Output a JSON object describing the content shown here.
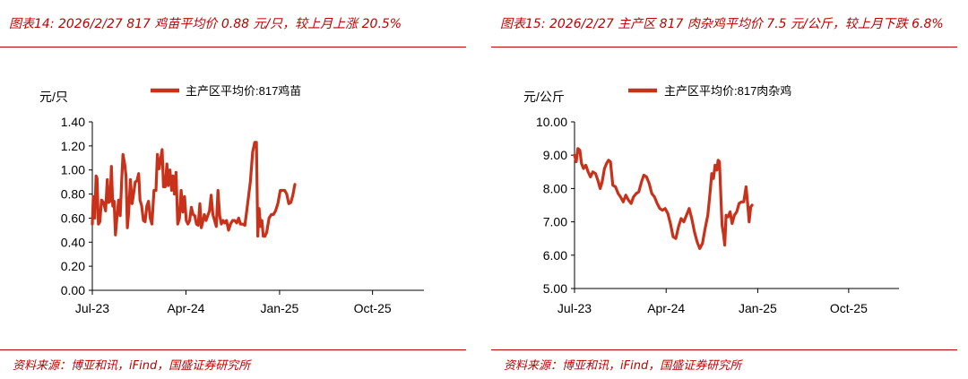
{
  "panels": [
    {
      "title": "图表14:  2026/2/27 817 鸡苗平均价 0.88 元/只，较上月上涨 20.5%",
      "source": "资料来源：博亚和讯，iFind，国盛证券研究所"
    },
    {
      "title": "图表15:  2026/2/27 主产区 817 肉杂鸡平均价 7.5 元/公斤，较上月下跌 6.8%",
      "source": "资料来源：博亚和讯，iFind，国盛证券研究所"
    }
  ],
  "colors": {
    "accent": "#c00000",
    "series": "#c8321a",
    "axis": "#000000"
  },
  "chart_data": [
    {
      "type": "line",
      "title": "",
      "unit_label": "元/只",
      "legend": "top",
      "grid": false,
      "ylim": [
        0.0,
        1.4
      ],
      "yticks": [
        "0.00",
        "0.20",
        "0.40",
        "0.60",
        "0.80",
        "1.00",
        "1.20",
        "1.40"
      ],
      "xlim": [
        "2023-07",
        "2026-03"
      ],
      "xticks": [
        {
          "label": "Jul-23",
          "date": "2023-07"
        },
        {
          "label": "Apr-24",
          "date": "2024-04"
        },
        {
          "label": "Jan-25",
          "date": "2025-01"
        },
        {
          "label": "Oct-25",
          "date": "2025-10"
        }
      ],
      "series": [
        {
          "name": "主产区平均价:817鸡苗",
          "points": [
            [
              "2023-07-01",
              0.55
            ],
            [
              "2023-07-04",
              0.78
            ],
            [
              "2023-07-08",
              0.6
            ],
            [
              "2023-07-12",
              0.95
            ],
            [
              "2023-07-15",
              0.93
            ],
            [
              "2023-07-19",
              0.55
            ],
            [
              "2023-07-23",
              0.57
            ],
            [
              "2023-07-28",
              0.75
            ],
            [
              "2023-08-03",
              0.73
            ],
            [
              "2023-08-09",
              0.66
            ],
            [
              "2023-08-14",
              0.92
            ],
            [
              "2023-08-18",
              0.73
            ],
            [
              "2023-08-22",
              0.74
            ],
            [
              "2023-08-26",
              1.03
            ],
            [
              "2023-08-30",
              0.7
            ],
            [
              "2023-09-03",
              0.74
            ],
            [
              "2023-09-07",
              0.46
            ],
            [
              "2023-09-11",
              0.6
            ],
            [
              "2023-09-16",
              0.75
            ],
            [
              "2023-09-21",
              0.62
            ],
            [
              "2023-09-25",
              0.9
            ],
            [
              "2023-09-29",
              1.13
            ],
            [
              "2023-10-04",
              1.05
            ],
            [
              "2023-10-08",
              0.95
            ],
            [
              "2023-10-12",
              0.52
            ],
            [
              "2023-10-16",
              0.65
            ],
            [
              "2023-10-21",
              0.92
            ],
            [
              "2023-10-26",
              0.72
            ],
            [
              "2023-10-30",
              0.8
            ],
            [
              "2023-11-04",
              0.9
            ],
            [
              "2023-11-09",
              0.91
            ],
            [
              "2023-11-14",
              0.97
            ],
            [
              "2023-11-18",
              0.75
            ],
            [
              "2023-11-23",
              0.7
            ],
            [
              "2023-11-28",
              0.58
            ],
            [
              "2023-12-03",
              0.57
            ],
            [
              "2023-12-08",
              0.7
            ],
            [
              "2023-12-13",
              0.74
            ],
            [
              "2023-12-18",
              0.6
            ],
            [
              "2023-12-23",
              0.55
            ],
            [
              "2023-12-29",
              0.83
            ],
            [
              "2024-01-04",
              0.83
            ],
            [
              "2024-01-08",
              1.13
            ],
            [
              "2024-01-13",
              1.01
            ],
            [
              "2024-01-18",
              1.1
            ],
            [
              "2024-01-22",
              1.17
            ],
            [
              "2024-01-26",
              0.86
            ],
            [
              "2024-01-31",
              0.86
            ],
            [
              "2024-02-05",
              1.05
            ],
            [
              "2024-02-09",
              0.87
            ],
            [
              "2024-02-14",
              1.0
            ],
            [
              "2024-02-19",
              0.83
            ],
            [
              "2024-02-23",
              0.95
            ],
            [
              "2024-02-27",
              0.8
            ],
            [
              "2024-03-03",
              0.98
            ],
            [
              "2024-03-08",
              0.55
            ],
            [
              "2024-03-13",
              0.6
            ],
            [
              "2024-03-18",
              0.83
            ],
            [
              "2024-03-23",
              0.65
            ],
            [
              "2024-03-28",
              0.78
            ],
            [
              "2024-04-02",
              0.58
            ],
            [
              "2024-04-07",
              0.55
            ],
            [
              "2024-04-12",
              0.58
            ],
            [
              "2024-04-17",
              0.69
            ],
            [
              "2024-04-22",
              0.63
            ],
            [
              "2024-04-27",
              0.62
            ],
            [
              "2024-05-02",
              0.55
            ],
            [
              "2024-05-07",
              0.54
            ],
            [
              "2024-05-12",
              0.72
            ],
            [
              "2024-05-16",
              0.52
            ],
            [
              "2024-05-21",
              0.58
            ],
            [
              "2024-05-25",
              0.63
            ],
            [
              "2024-05-30",
              0.58
            ],
            [
              "2024-06-04",
              0.62
            ],
            [
              "2024-06-09",
              0.66
            ],
            [
              "2024-06-14",
              0.79
            ],
            [
              "2024-06-19",
              0.63
            ],
            [
              "2024-06-24",
              0.58
            ],
            [
              "2024-06-29",
              0.53
            ],
            [
              "2024-07-04",
              0.83
            ],
            [
              "2024-07-09",
              0.62
            ],
            [
              "2024-07-14",
              0.55
            ],
            [
              "2024-07-19",
              0.58
            ],
            [
              "2024-07-24",
              0.56
            ],
            [
              "2024-07-29",
              0.58
            ],
            [
              "2024-08-04",
              0.5
            ],
            [
              "2024-08-10",
              0.55
            ],
            [
              "2024-08-16",
              0.58
            ],
            [
              "2024-08-22",
              0.58
            ],
            [
              "2024-08-28",
              0.56
            ],
            [
              "2024-09-03",
              0.6
            ],
            [
              "2024-09-08",
              0.55
            ],
            [
              "2024-09-15",
              0.55
            ],
            [
              "2024-09-21",
              0.54
            ],
            [
              "2024-09-28",
              0.69
            ],
            [
              "2024-10-07",
              0.9
            ],
            [
              "2024-10-14",
              1.15
            ],
            [
              "2024-10-20",
              1.23
            ],
            [
              "2024-10-25",
              1.23
            ],
            [
              "2024-10-29",
              0.45
            ],
            [
              "2024-11-02",
              0.68
            ],
            [
              "2024-11-06",
              0.53
            ],
            [
              "2024-11-10",
              0.58
            ],
            [
              "2024-11-14",
              0.45
            ],
            [
              "2024-11-19",
              0.45
            ],
            [
              "2024-11-24",
              0.48
            ],
            [
              "2024-12-01",
              0.6
            ],
            [
              "2024-12-08",
              0.63
            ],
            [
              "2024-12-14",
              0.63
            ],
            [
              "2024-12-20",
              0.66
            ],
            [
              "2024-12-27",
              0.72
            ],
            [
              "2025-01-03",
              0.83
            ],
            [
              "2025-01-09",
              0.83
            ],
            [
              "2025-01-16",
              0.83
            ],
            [
              "2025-01-22",
              0.8
            ],
            [
              "2025-01-28",
              0.72
            ],
            [
              "2025-02-03",
              0.73
            ],
            [
              "2025-02-09",
              0.79
            ],
            [
              "2025-02-15",
              0.88
            ]
          ]
        }
      ]
    },
    {
      "type": "line",
      "title": "",
      "unit_label": "元/公斤",
      "legend": "top",
      "grid": false,
      "ylim": [
        5.0,
        10.0
      ],
      "yticks": [
        "5.00",
        "6.00",
        "7.00",
        "8.00",
        "9.00",
        "10.00"
      ],
      "xlim": [
        "2023-07",
        "2026-03"
      ],
      "xticks": [
        {
          "label": "Jul-23",
          "date": "2023-07"
        },
        {
          "label": "Apr-24",
          "date": "2024-04"
        },
        {
          "label": "Jan-25",
          "date": "2025-01"
        },
        {
          "label": "Oct-25",
          "date": "2025-10"
        }
      ],
      "series": [
        {
          "name": "主产区平均价:817肉杂鸡",
          "points": [
            [
              "2023-07-01",
              9.0
            ],
            [
              "2023-07-06",
              8.8
            ],
            [
              "2023-07-11",
              9.2
            ],
            [
              "2023-07-17",
              9.15
            ],
            [
              "2023-07-22",
              8.75
            ],
            [
              "2023-07-28",
              8.6
            ],
            [
              "2023-08-04",
              8.7
            ],
            [
              "2023-08-11",
              8.5
            ],
            [
              "2023-08-18",
              8.35
            ],
            [
              "2023-08-25",
              8.5
            ],
            [
              "2023-09-02",
              8.45
            ],
            [
              "2023-09-09",
              8.25
            ],
            [
              "2023-09-16",
              8.0
            ],
            [
              "2023-09-22",
              8.2
            ],
            [
              "2023-09-29",
              8.6
            ],
            [
              "2023-10-05",
              8.75
            ],
            [
              "2023-10-11",
              8.85
            ],
            [
              "2023-10-17",
              8.8
            ],
            [
              "2023-10-24",
              8.1
            ],
            [
              "2023-11-01",
              8.05
            ],
            [
              "2023-11-09",
              7.85
            ],
            [
              "2023-11-16",
              7.75
            ],
            [
              "2023-11-24",
              7.6
            ],
            [
              "2023-12-02",
              7.8
            ],
            [
              "2023-12-10",
              7.65
            ],
            [
              "2023-12-18",
              7.55
            ],
            [
              "2023-12-25",
              7.75
            ],
            [
              "2024-01-02",
              7.85
            ],
            [
              "2024-01-10",
              7.9
            ],
            [
              "2024-01-18",
              8.2
            ],
            [
              "2024-01-25",
              8.4
            ],
            [
              "2024-02-02",
              8.35
            ],
            [
              "2024-02-10",
              8.15
            ],
            [
              "2024-02-18",
              7.85
            ],
            [
              "2024-02-26",
              7.75
            ],
            [
              "2024-03-05",
              7.55
            ],
            [
              "2024-03-13",
              7.4
            ],
            [
              "2024-03-21",
              7.35
            ],
            [
              "2024-03-29",
              7.4
            ],
            [
              "2024-04-06",
              7.25
            ],
            [
              "2024-04-14",
              6.95
            ],
            [
              "2024-04-22",
              6.55
            ],
            [
              "2024-04-30",
              6.5
            ],
            [
              "2024-05-08",
              6.85
            ],
            [
              "2024-05-16",
              7.1
            ],
            [
              "2024-05-24",
              7.0
            ],
            [
              "2024-06-01",
              7.2
            ],
            [
              "2024-06-09",
              7.4
            ],
            [
              "2024-06-17",
              7.1
            ],
            [
              "2024-06-25",
              6.7
            ],
            [
              "2024-07-03",
              6.4
            ],
            [
              "2024-07-11",
              6.2
            ],
            [
              "2024-07-19",
              6.35
            ],
            [
              "2024-07-27",
              6.8
            ],
            [
              "2024-08-04",
              7.2
            ],
            [
              "2024-08-11",
              7.9
            ],
            [
              "2024-08-16",
              8.45
            ],
            [
              "2024-08-21",
              8.3
            ],
            [
              "2024-08-26",
              8.7
            ],
            [
              "2024-08-31",
              8.55
            ],
            [
              "2024-09-04",
              8.85
            ],
            [
              "2024-09-08",
              8.8
            ],
            [
              "2024-09-12",
              7.8
            ],
            [
              "2024-09-16",
              6.9
            ],
            [
              "2024-09-20",
              6.65
            ],
            [
              "2024-09-24",
              6.3
            ],
            [
              "2024-09-28",
              7.2
            ],
            [
              "2024-10-04",
              7.15
            ],
            [
              "2024-10-10",
              7.3
            ],
            [
              "2024-10-16",
              6.95
            ],
            [
              "2024-10-23",
              7.2
            ],
            [
              "2024-10-30",
              7.3
            ],
            [
              "2024-11-06",
              7.55
            ],
            [
              "2024-11-13",
              7.6
            ],
            [
              "2024-11-20",
              7.6
            ],
            [
              "2024-11-27",
              8.05
            ],
            [
              "2024-12-02",
              7.5
            ],
            [
              "2024-12-06",
              7.0
            ],
            [
              "2024-12-11",
              7.45
            ],
            [
              "2024-12-15",
              7.5
            ]
          ]
        }
      ]
    }
  ]
}
